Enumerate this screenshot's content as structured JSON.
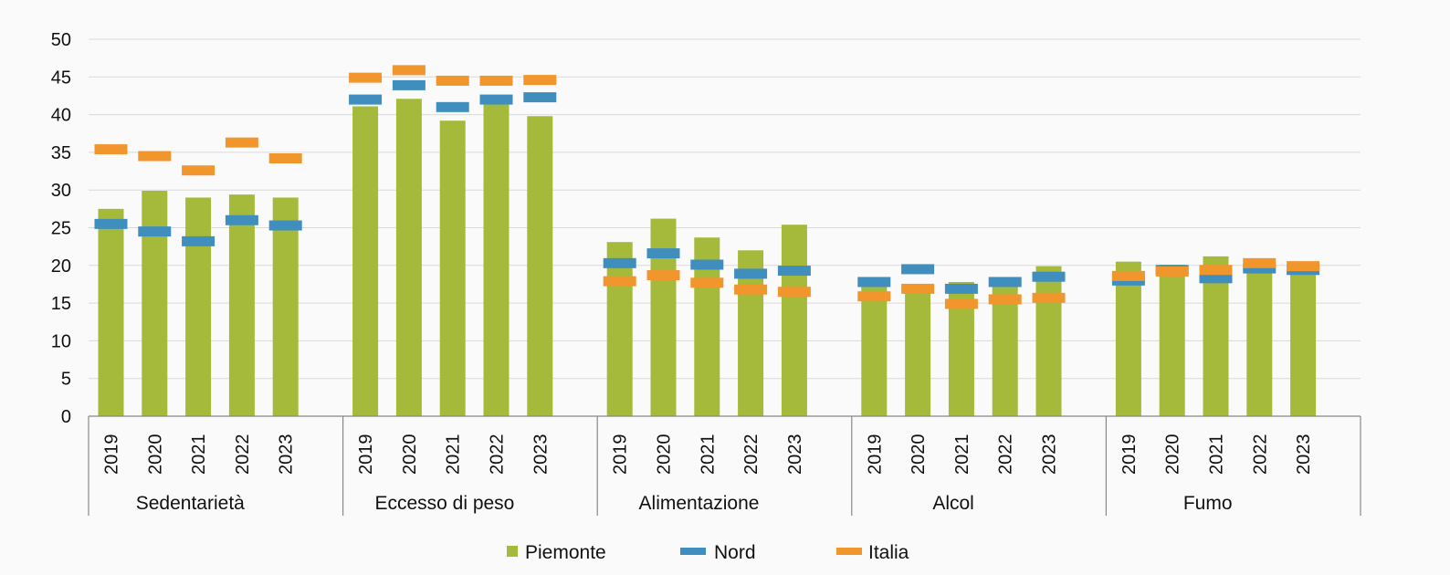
{
  "chart_data": {
    "type": "bar",
    "title": "",
    "ylabel": "",
    "xlabel": "",
    "ylim": [
      0,
      50
    ],
    "yticks": [
      0,
      5,
      10,
      15,
      20,
      25,
      30,
      35,
      40,
      45,
      50
    ],
    "grid": true,
    "legend_position": "bottom",
    "colors": {
      "Piemonte": "#a5b93b",
      "Nord": "#3f8ebe",
      "Italia": "#f0962d"
    },
    "groups": [
      {
        "name": "Sedentarietà",
        "years": [
          "2019",
          "2020",
          "2021",
          "2022",
          "2023"
        ],
        "Piemonte": [
          27.5,
          29.9,
          29.0,
          29.4,
          29.0
        ],
        "Nord": [
          25.5,
          24.5,
          23.2,
          26.0,
          25.3
        ],
        "Italia": [
          35.4,
          34.5,
          32.6,
          36.3,
          34.2
        ]
      },
      {
        "name": "Eccesso di peso",
        "years": [
          "2019",
          "2020",
          "2021",
          "2022",
          "2023"
        ],
        "Piemonte": [
          41.1,
          42.1,
          39.2,
          41.9,
          39.8
        ],
        "Nord": [
          42.0,
          43.9,
          41.0,
          42.0,
          42.3
        ],
        "Italia": [
          44.9,
          45.9,
          44.5,
          44.5,
          44.6
        ]
      },
      {
        "name": "Alimentazione",
        "years": [
          "2019",
          "2020",
          "2021",
          "2022",
          "2023"
        ],
        "Piemonte": [
          23.1,
          26.2,
          23.7,
          22.0,
          25.4
        ],
        "Nord": [
          20.3,
          21.6,
          20.1,
          18.9,
          19.3
        ],
        "Italia": [
          17.9,
          18.7,
          17.7,
          16.8,
          16.5
        ]
      },
      {
        "name": "Alcol",
        "years": [
          "2019",
          "2020",
          "2021",
          "2022",
          "2023"
        ],
        "Piemonte": [
          17.6,
          17.3,
          17.8,
          17.9,
          19.9
        ],
        "Nord": [
          17.8,
          19.5,
          16.9,
          17.8,
          18.5
        ],
        "Italia": [
          15.9,
          16.9,
          14.9,
          15.5,
          15.7
        ]
      },
      {
        "name": "Fumo",
        "years": [
          "2019",
          "2020",
          "2021",
          "2022",
          "2023"
        ],
        "Piemonte": [
          20.5,
          20.1,
          21.2,
          20.6,
          18.8
        ],
        "Nord": [
          18.0,
          19.4,
          18.3,
          19.6,
          19.4
        ],
        "Italia": [
          18.6,
          19.2,
          19.4,
          20.3,
          19.9
        ]
      }
    ],
    "series": [
      {
        "name": "Piemonte",
        "kind": "bar"
      },
      {
        "name": "Nord",
        "kind": "marker"
      },
      {
        "name": "Italia",
        "kind": "marker"
      }
    ]
  }
}
